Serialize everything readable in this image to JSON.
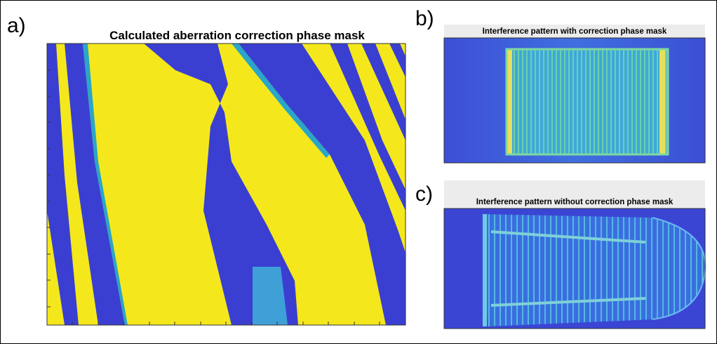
{
  "panels": [
    {
      "label": "a)",
      "title": "Calculated aberration correction phase mask"
    },
    {
      "label": "b)",
      "title": "Interference pattern with correction phase mask"
    },
    {
      "label": "c)",
      "title": "Interference pattern without correction phase mask"
    }
  ]
}
